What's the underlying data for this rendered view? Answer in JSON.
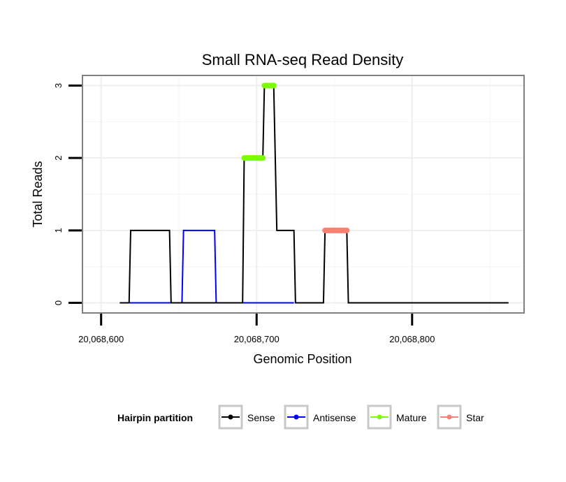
{
  "chart_data": {
    "type": "line",
    "title": "Small RNA-seq Read Density",
    "xlabel": "Genomic Position",
    "ylabel": "Total Reads",
    "xlim": [
      20068588,
      20068872
    ],
    "ylim": [
      -0.14,
      3.14
    ],
    "x_ticks": [
      {
        "value": 20068600,
        "label": "20,068,600"
      },
      {
        "value": 20068700,
        "label": "20,068,700"
      },
      {
        "value": 20068800,
        "label": "20,068,800"
      }
    ],
    "y_ticks": [
      {
        "value": 0,
        "label": "0"
      },
      {
        "value": 1,
        "label": "1"
      },
      {
        "value": 2,
        "label": "2"
      },
      {
        "value": 3,
        "label": "3"
      }
    ],
    "grid": true,
    "legend": {
      "title": "Hairpin partition",
      "position": "bottom",
      "entries": [
        {
          "label": "Sense",
          "color": "#000000"
        },
        {
          "label": "Antisense",
          "color": "#0000ff"
        },
        {
          "label": "Mature",
          "color": "#7cfc00"
        },
        {
          "label": "Star",
          "color": "#fa8072"
        }
      ]
    },
    "series": [
      {
        "name": "Sense",
        "color": "#000000",
        "points": [
          [
            20068612,
            0
          ],
          [
            20068618,
            0
          ],
          [
            20068619,
            1
          ],
          [
            20068644,
            1
          ],
          [
            20068645,
            0
          ],
          [
            20068691,
            0
          ],
          [
            20068692,
            2
          ],
          [
            20068704,
            2
          ],
          [
            20068705,
            3
          ],
          [
            20068711,
            3
          ],
          [
            20068713,
            1
          ],
          [
            20068724,
            1
          ],
          [
            20068725,
            0
          ],
          [
            20068743,
            0
          ],
          [
            20068744,
            1
          ],
          [
            20068758,
            1
          ],
          [
            20068759,
            0
          ],
          [
            20068862,
            0
          ]
        ]
      },
      {
        "name": "Antisense",
        "color": "#0000ff",
        "points": [
          [
            20068618,
            0
          ],
          [
            20068652,
            0
          ],
          [
            20068653,
            1
          ],
          [
            20068673,
            1
          ],
          [
            20068674,
            0
          ],
          [
            20068724,
            0
          ]
        ]
      },
      {
        "name": "Mature",
        "color": "#7cfc00",
        "segments": [
          {
            "x": [
              20068692,
              20068704
            ],
            "y": 2
          },
          {
            "x": [
              20068705,
              20068711
            ],
            "y": 3
          }
        ]
      },
      {
        "name": "Star",
        "color": "#fa8072",
        "segments": [
          {
            "x": [
              20068744,
              20068758
            ],
            "y": 1
          }
        ]
      }
    ]
  }
}
